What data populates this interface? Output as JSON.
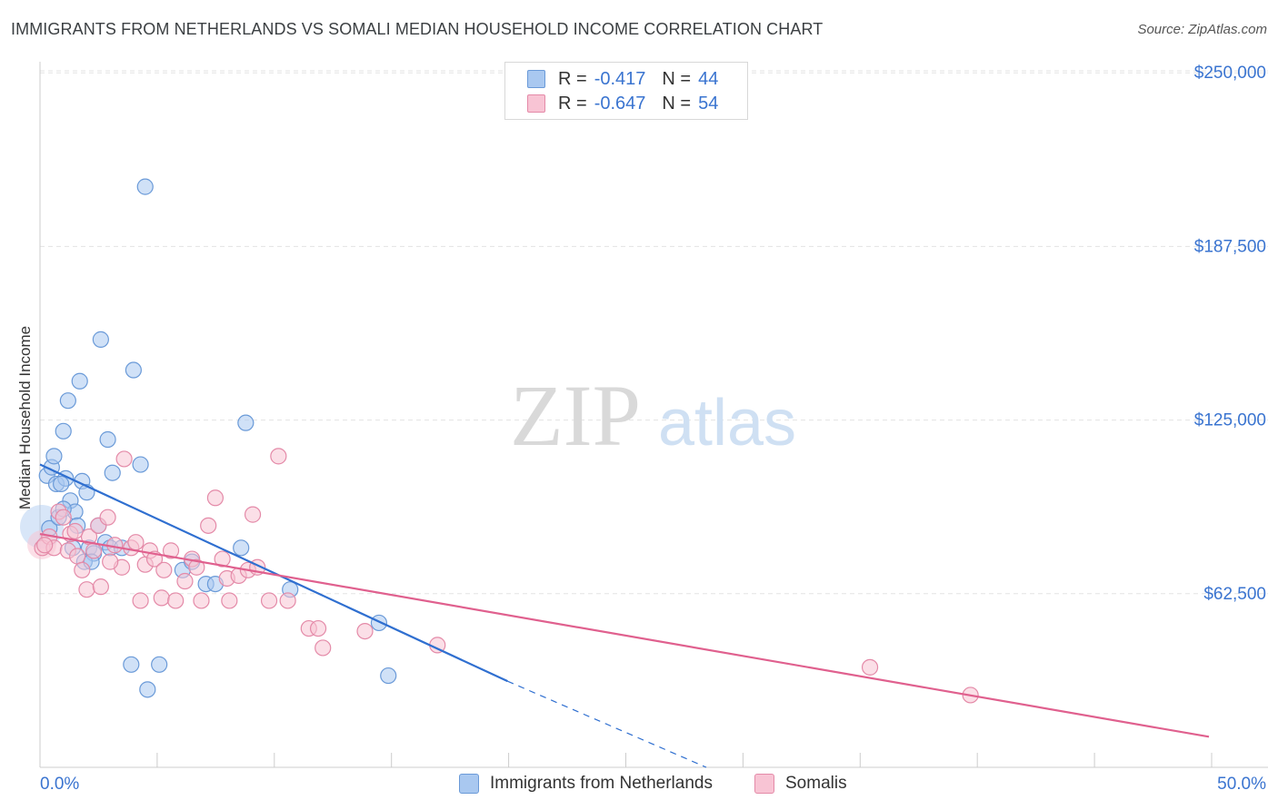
{
  "header": {
    "title": "IMMIGRANTS FROM NETHERLANDS VS SOMALI MEDIAN HOUSEHOLD INCOME CORRELATION CHART",
    "source": "Source: ZipAtlas.com"
  },
  "watermark": {
    "zip": "ZIP",
    "atlas": "atlas"
  },
  "legend_top": {
    "rows": [
      {
        "r_label": "R =",
        "r_value": "-0.417",
        "n_label": "N =",
        "n_value": "44",
        "color": "#a9c8f0",
        "border": "#6a9ad8"
      },
      {
        "r_label": "R =",
        "r_value": "-0.647",
        "n_label": "N =",
        "n_value": "54",
        "color": "#f8c4d4",
        "border": "#e48aa8"
      }
    ]
  },
  "bottom_legend": {
    "items": [
      {
        "label": "Immigrants from Netherlands",
        "color": "#a9c8f0",
        "border": "#6a9ad8"
      },
      {
        "label": "Somalis",
        "color": "#f8c4d4",
        "border": "#e48aa8"
      }
    ]
  },
  "chart_data": {
    "type": "scatter",
    "title": "IMMIGRANTS FROM NETHERLANDS VS SOMALI MEDIAN HOUSEHOLD INCOME CORRELATION CHART",
    "xlabel": "",
    "ylabel": "Median Household Income",
    "xlim": [
      0,
      50
    ],
    "ylim": [
      0,
      260000
    ],
    "x_tick_labels": [
      "0.0%",
      "50.0%"
    ],
    "y_ticks": [
      62500,
      125000,
      187500,
      250000
    ],
    "y_tick_labels": [
      "$62,500",
      "$125,000",
      "$187,500",
      "$250,000"
    ],
    "grid": "horizontal dashed",
    "series": [
      {
        "name": "Immigrants from Netherlands",
        "color": "#6fa3e0",
        "points": [
          [
            0.3,
            105000
          ],
          [
            0.5,
            108000
          ],
          [
            0.6,
            112000
          ],
          [
            0.4,
            86000
          ],
          [
            0.7,
            102000
          ],
          [
            1.0,
            121000
          ],
          [
            1.2,
            132000
          ],
          [
            1.1,
            104000
          ],
          [
            0.9,
            102000
          ],
          [
            1.3,
            96000
          ],
          [
            1.5,
            92000
          ],
          [
            1.6,
            87000
          ],
          [
            1.4,
            79000
          ],
          [
            1.8,
            103000
          ],
          [
            2.0,
            99000
          ],
          [
            2.1,
            79000
          ],
          [
            2.3,
            77000
          ],
          [
            1.9,
            74000
          ],
          [
            2.5,
            87000
          ],
          [
            2.8,
            81000
          ],
          [
            3.0,
            79000
          ],
          [
            3.1,
            106000
          ],
          [
            2.9,
            118000
          ],
          [
            2.6,
            154000
          ],
          [
            1.7,
            139000
          ],
          [
            4.0,
            143000
          ],
          [
            4.3,
            109000
          ],
          [
            3.9,
            37000
          ],
          [
            4.6,
            28000
          ],
          [
            5.1,
            37000
          ],
          [
            4.5,
            209000
          ],
          [
            6.1,
            71000
          ],
          [
            6.5,
            74000
          ],
          [
            7.1,
            66000
          ],
          [
            7.5,
            66000
          ],
          [
            8.6,
            79000
          ],
          [
            8.8,
            124000
          ],
          [
            10.7,
            64000
          ],
          [
            14.5,
            52000
          ],
          [
            14.9,
            33000
          ],
          [
            0.8,
            90000
          ],
          [
            2.2,
            74000
          ],
          [
            3.5,
            79000
          ],
          [
            1.0,
            93000
          ]
        ]
      },
      {
        "name": "Somalis",
        "color": "#ec8fb0",
        "points": [
          [
            0.1,
            79000
          ],
          [
            0.4,
            83000
          ],
          [
            0.6,
            79000
          ],
          [
            0.8,
            92000
          ],
          [
            1.0,
            90000
          ],
          [
            1.2,
            78000
          ],
          [
            1.3,
            84000
          ],
          [
            1.6,
            76000
          ],
          [
            1.8,
            71000
          ],
          [
            2.0,
            64000
          ],
          [
            2.1,
            83000
          ],
          [
            2.3,
            78000
          ],
          [
            2.5,
            87000
          ],
          [
            2.6,
            65000
          ],
          [
            2.9,
            90000
          ],
          [
            3.2,
            80000
          ],
          [
            3.6,
            111000
          ],
          [
            3.5,
            72000
          ],
          [
            3.9,
            79000
          ],
          [
            4.1,
            81000
          ],
          [
            4.3,
            60000
          ],
          [
            4.5,
            73000
          ],
          [
            4.7,
            78000
          ],
          [
            4.9,
            75000
          ],
          [
            5.2,
            61000
          ],
          [
            5.3,
            71000
          ],
          [
            5.6,
            78000
          ],
          [
            5.8,
            60000
          ],
          [
            6.2,
            67000
          ],
          [
            6.5,
            75000
          ],
          [
            6.9,
            60000
          ],
          [
            7.2,
            87000
          ],
          [
            7.5,
            97000
          ],
          [
            7.8,
            75000
          ],
          [
            8.0,
            68000
          ],
          [
            8.1,
            60000
          ],
          [
            8.5,
            69000
          ],
          [
            8.9,
            71000
          ],
          [
            9.1,
            91000
          ],
          [
            9.3,
            72000
          ],
          [
            9.8,
            60000
          ],
          [
            10.2,
            112000
          ],
          [
            10.6,
            60000
          ],
          [
            11.5,
            50000
          ],
          [
            11.9,
            50000
          ],
          [
            12.1,
            43000
          ],
          [
            13.9,
            49000
          ],
          [
            17.0,
            44000
          ],
          [
            35.5,
            36000
          ],
          [
            39.8,
            26000
          ],
          [
            0.2,
            80000
          ],
          [
            1.5,
            85000
          ],
          [
            3.0,
            74000
          ],
          [
            6.7,
            72000
          ]
        ]
      }
    ],
    "trendlines": [
      {
        "series": "Immigrants from Netherlands",
        "color": "#2f6fd0",
        "solid": [
          [
            0.0,
            109000
          ],
          [
            20.0,
            31000
          ]
        ],
        "dashed": [
          [
            20.0,
            31000
          ],
          [
            28.5,
            -2000
          ]
        ]
      },
      {
        "series": "Somalis",
        "color": "#e0608e",
        "solid": [
          [
            0.0,
            84000
          ],
          [
            50.0,
            11000
          ]
        ]
      }
    ]
  }
}
